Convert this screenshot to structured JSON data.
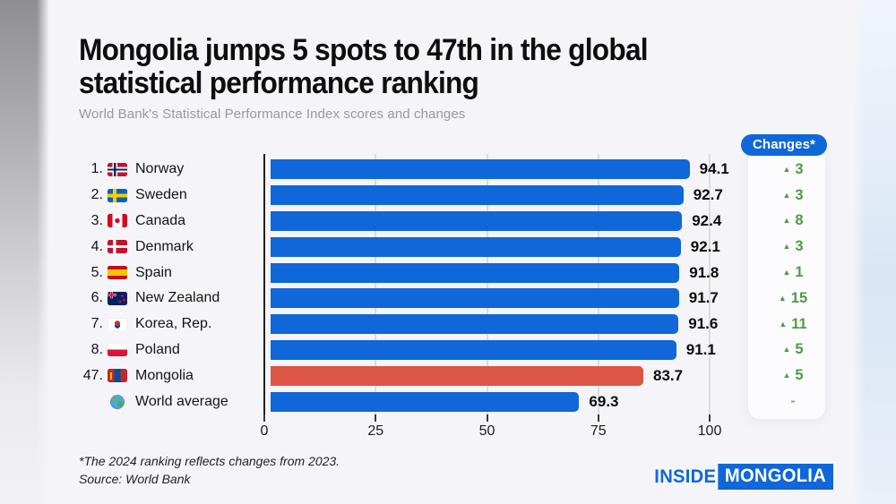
{
  "colors": {
    "bar_blue": "#0f67d9",
    "bar_red": "#dd5643",
    "change_green": "#4f9b44",
    "accent_blue": "#0f67d9"
  },
  "header": {
    "title_lines": [
      "Mongolia jumps 5 spots to 47th in the global",
      "statistical performance ranking"
    ],
    "subtitle": "World Bank's Statistical Performance Index scores and changes"
  },
  "changes_panel": {
    "header": "Changes*"
  },
  "chart_data": {
    "type": "bar",
    "orientation": "horizontal",
    "title": "Mongolia jumps 5 spots to 47th in the global statistical performance ranking",
    "subtitle": "World Bank's Statistical Performance Index scores and changes",
    "xlabel": "",
    "ylabel": "",
    "xlim": [
      0,
      100
    ],
    "xticks": [
      "0",
      "25",
      "50",
      "75",
      "100"
    ],
    "grid": true,
    "rows": [
      {
        "rank": "1.",
        "country": "Norway",
        "flag": "norway",
        "value": 94.1,
        "change": "3",
        "highlight": false
      },
      {
        "rank": "2.",
        "country": "Sweden",
        "flag": "sweden",
        "value": 92.7,
        "change": "3",
        "highlight": false
      },
      {
        "rank": "3.",
        "country": "Canada",
        "flag": "canada",
        "value": 92.4,
        "change": "8",
        "highlight": false
      },
      {
        "rank": "4.",
        "country": "Denmark",
        "flag": "denmark",
        "value": 92.1,
        "change": "3",
        "highlight": false
      },
      {
        "rank": "5.",
        "country": "Spain",
        "flag": "spain",
        "value": 91.8,
        "change": "1",
        "highlight": false
      },
      {
        "rank": "6.",
        "country": "New Zealand",
        "flag": "new-zealand",
        "value": 91.7,
        "change": "15",
        "highlight": false
      },
      {
        "rank": "7.",
        "country": "Korea, Rep.",
        "flag": "korea",
        "value": 91.6,
        "change": "11",
        "highlight": false
      },
      {
        "rank": "8.",
        "country": "Poland",
        "flag": "poland",
        "value": 91.1,
        "change": "5",
        "highlight": false
      },
      {
        "rank": "47.",
        "country": "Mongolia",
        "flag": "mongolia",
        "value": 83.7,
        "change": "5",
        "highlight": true
      },
      {
        "rank": "",
        "country": "World average",
        "flag": "globe",
        "value": 69.3,
        "change": "-",
        "highlight": false
      }
    ]
  },
  "footer": {
    "note": "*The 2024 ranking reflects changes from 2023.",
    "source": "Source: World Bank"
  },
  "logo": {
    "part1": "INSIDE",
    "part2": "MONGOLIA"
  },
  "icons": {
    "up_arrow": "▲"
  }
}
